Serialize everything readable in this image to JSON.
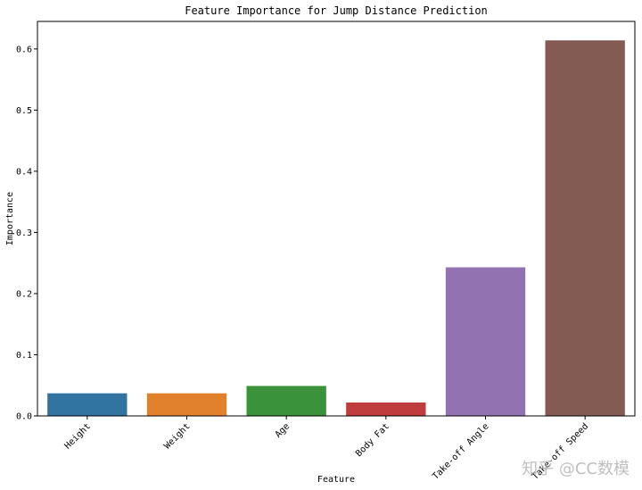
{
  "chart_data": {
    "type": "bar",
    "title": "Feature Importance for Jump Distance Prediction",
    "xlabel": "Feature",
    "ylabel": "Importance",
    "categories": [
      "Height",
      "Weight",
      "Age",
      "Body Fat",
      "Take-off Angle",
      "Take-off Speed"
    ],
    "values": [
      0.037,
      0.037,
      0.049,
      0.022,
      0.243,
      0.614
    ],
    "colors": [
      "#3274a1",
      "#e1812c",
      "#3a923a",
      "#c03d3e",
      "#9372b2",
      "#845b53"
    ],
    "ylim": [
      0,
      0.645
    ],
    "yticks": [
      "0.0",
      "0.1",
      "0.2",
      "0.3",
      "0.4",
      "0.5",
      "0.6"
    ],
    "ytick_values": [
      0,
      0.1,
      0.2,
      0.3,
      0.4,
      0.5,
      0.6
    ],
    "grid": false,
    "legend": "none"
  },
  "watermark": "知乎 @CC数模"
}
